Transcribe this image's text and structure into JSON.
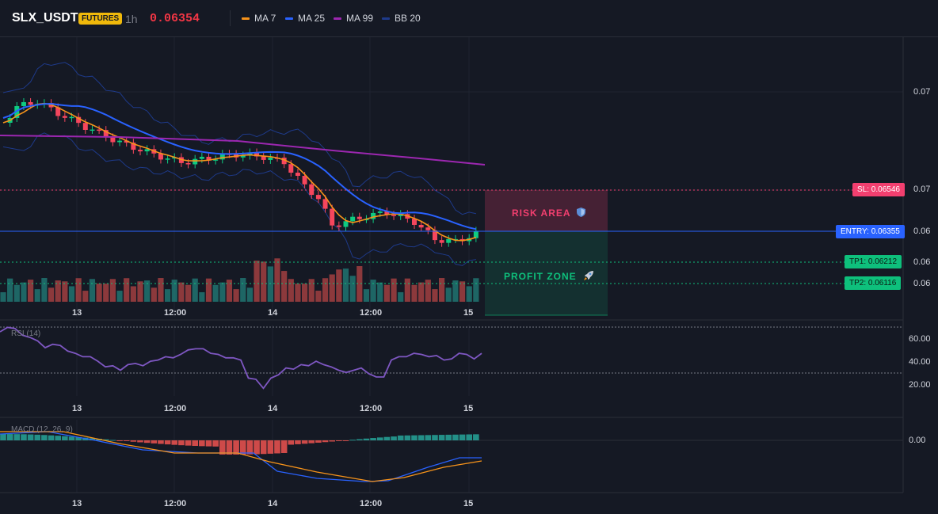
{
  "header": {
    "symbol": "SLX_USDT",
    "badge": "FUTURES",
    "timeframe": "1h",
    "price": "0.06354",
    "price_color": "#f23645"
  },
  "legend": [
    {
      "label": "MA 7",
      "color": "#f7931a"
    },
    {
      "label": "MA 25",
      "color": "#2962ff"
    },
    {
      "label": "MA 99",
      "color": "#9c27b0"
    },
    {
      "label": "BB 20",
      "color": "#1e3a8a"
    }
  ],
  "price_axis": {
    "ticks": [
      "0.07",
      "0.07",
      "0.06",
      "0.06",
      "0.06"
    ]
  },
  "levels": {
    "sl": {
      "label": "SL: 0.06546",
      "color": "#f23f6f"
    },
    "entry": {
      "label": "ENTRY: 0.06355",
      "color": "#2962ff"
    },
    "tp1": {
      "label": "TP1: 0.06212",
      "color": "#0ec07c"
    },
    "tp2": {
      "label": "TP2: 0.06116",
      "color": "#0ec07c"
    }
  },
  "zones": {
    "risk": {
      "label": "RISK AREA",
      "icon": "shield-icon"
    },
    "profit": {
      "label": "PROFIT ZONE",
      "icon": "rocket-icon"
    }
  },
  "time_axis": [
    "13",
    "12:00",
    "14",
    "12:00",
    "15"
  ],
  "rsi": {
    "title": "RSI (14)",
    "ticks": [
      "60.00",
      "40.00",
      "20.00"
    ],
    "values": [
      67,
      71,
      70,
      64,
      62,
      59,
      53,
      56,
      55,
      50,
      48,
      45,
      45,
      41,
      36,
      37,
      33,
      38,
      39,
      37,
      41,
      42,
      45,
      44,
      47,
      51,
      52,
      52,
      48,
      47,
      44,
      44,
      42,
      26,
      25,
      17,
      26,
      29,
      35,
      34,
      38,
      37,
      41,
      38,
      36,
      33,
      31,
      33,
      35,
      30,
      27,
      27,
      42,
      45,
      45,
      48,
      47,
      45,
      46,
      42,
      43,
      48,
      47,
      43,
      48
    ],
    "color": "#7e57c2"
  },
  "macd": {
    "title": "MACD (12, 26, 9)",
    "ticks": [
      "0.00"
    ]
  }
}
